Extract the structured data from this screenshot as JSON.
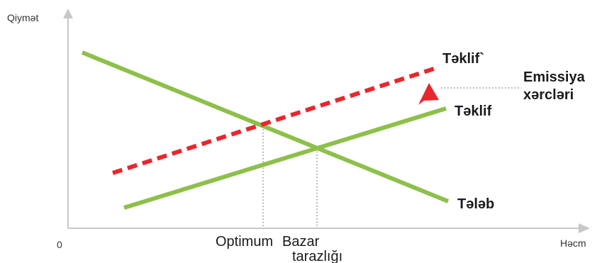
{
  "axes": {
    "y_label": "Qiymət",
    "x_label": "Həcm",
    "origin_label": "0"
  },
  "curves": {
    "demand": {
      "label": "Tələb",
      "color": "#8dc04a"
    },
    "supply": {
      "label": "Təklif",
      "color": "#8dc04a"
    },
    "supply_shifted": {
      "label": "Təklif`",
      "color": "#e8272d"
    }
  },
  "annotation": {
    "line1": "Emissiya",
    "line2": "xərcləri",
    "arrow_color": "#e8272d"
  },
  "points": {
    "optimum": "Optimum",
    "market_line1": "Bazar",
    "market_line2": "tarazlığı"
  },
  "colors": {
    "axis": "#c8c8c8",
    "guide": "#555555"
  }
}
